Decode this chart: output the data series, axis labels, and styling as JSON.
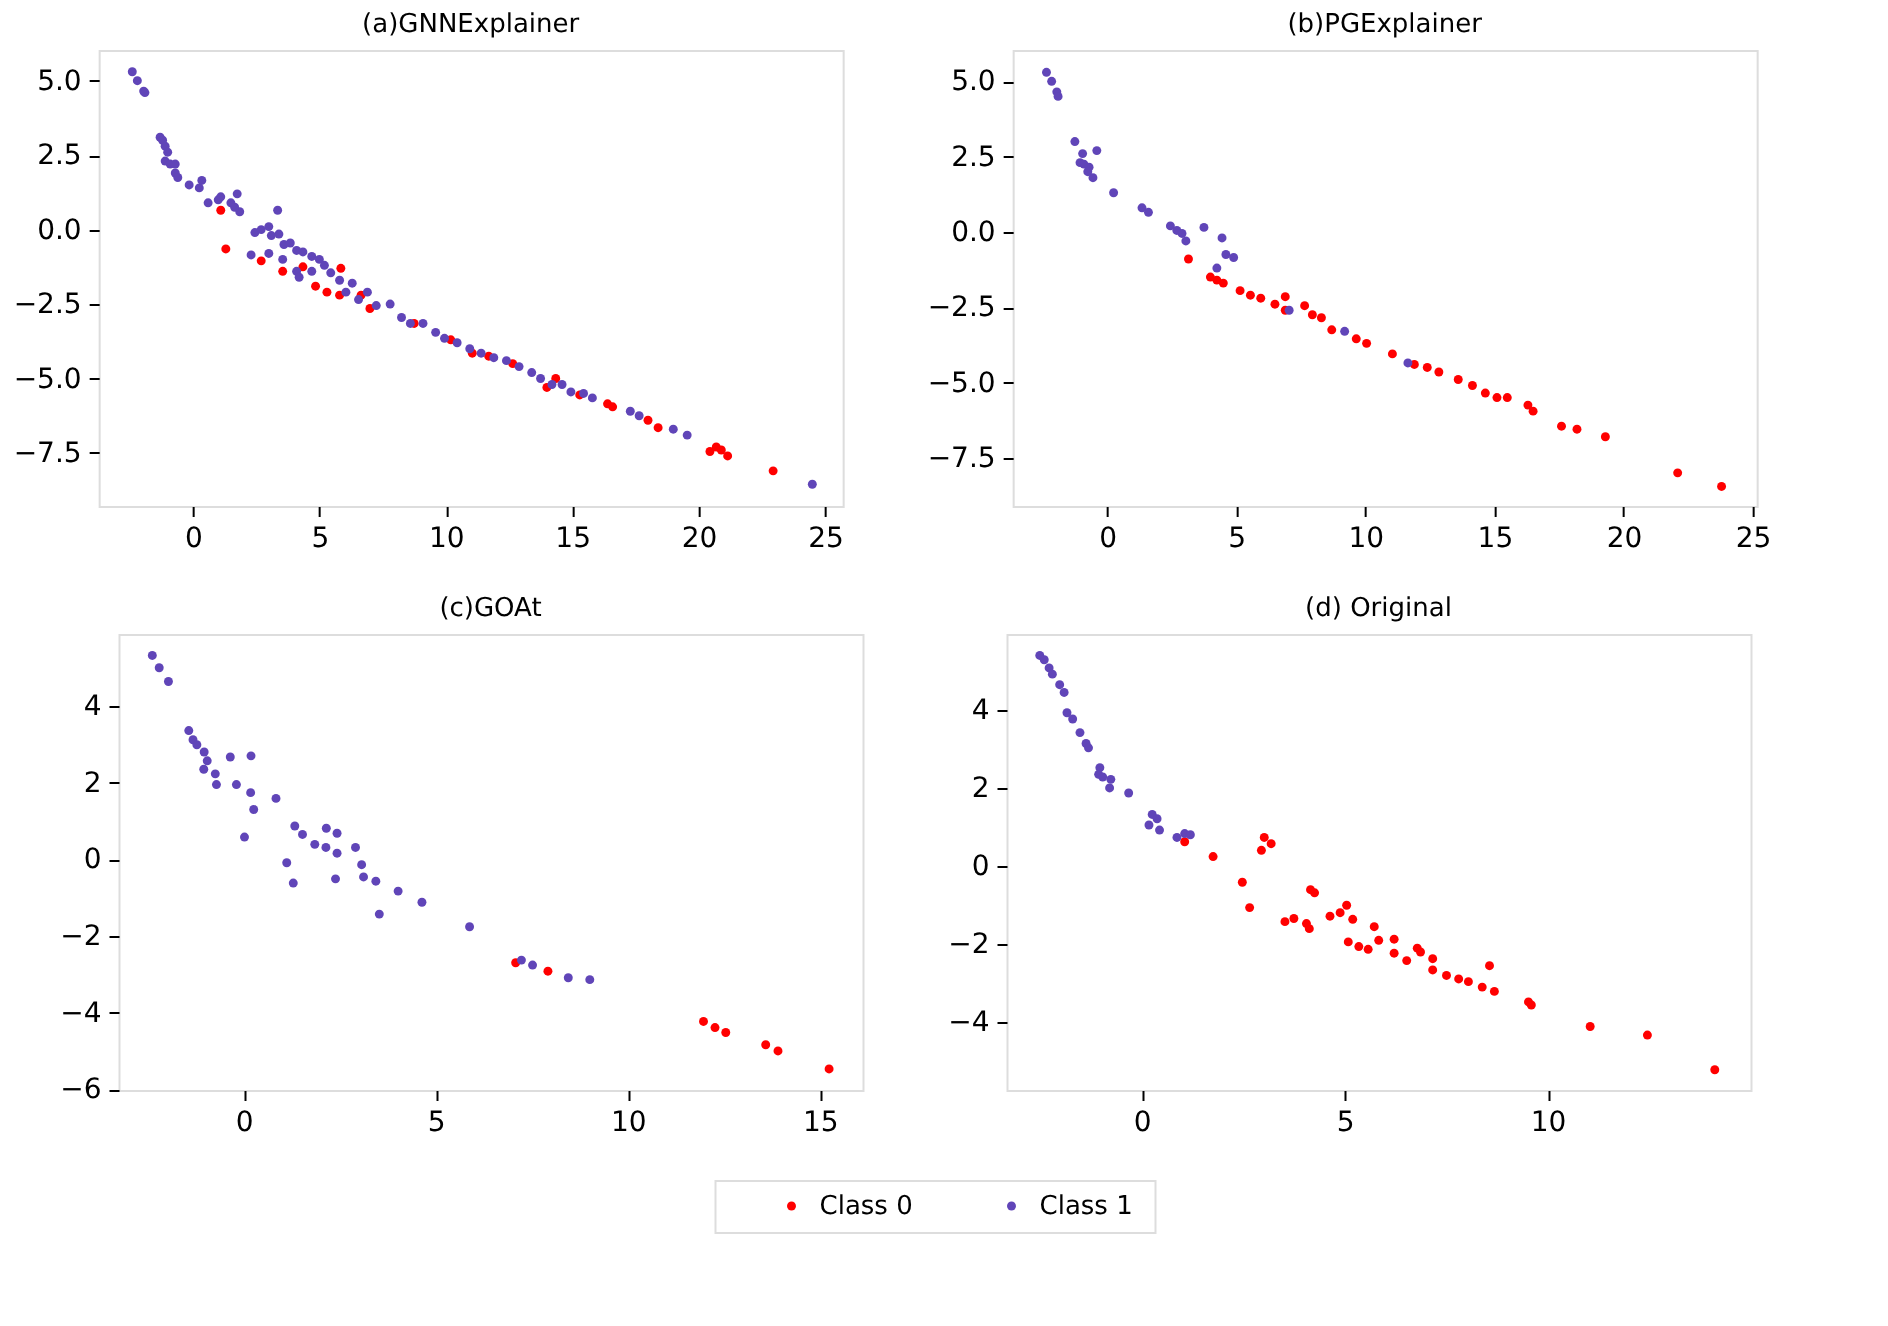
{
  "chart_data": [
    {
      "type": "scatter",
      "title": "(a)GNNExplainer",
      "xlim": [
        -3.73,
        25.7
      ],
      "ylim": [
        -9.28,
        6.03
      ],
      "xticks": [
        0,
        5,
        10,
        15,
        20,
        25
      ],
      "yticks": [
        {
          "value": -7.5,
          "label": "−7.5"
        },
        {
          "value": -5,
          "label": "−5.0"
        },
        {
          "value": -2.5,
          "label": "−2.5"
        },
        {
          "value": 0,
          "label": "0.0"
        },
        {
          "value": 2.5,
          "label": "2.5"
        },
        {
          "value": 5,
          "label": "5.0"
        }
      ],
      "grid": false,
      "marker": "circle",
      "legend": "bottom",
      "series": [
        {
          "name": "Class 0",
          "color": "#ff0000",
          "x": [
            1.3,
            1.1,
            2.7,
            3.55,
            4.35,
            5.85,
            4.85,
            5.3,
            5.8,
            6.65,
            7.0,
            8.75,
            10.2,
            11.05,
            11.7,
            12.65,
            14.0,
            14.35,
            15.3,
            16.4,
            16.6,
            18.0,
            18.4,
            20.45,
            20.7,
            20.9,
            21.15,
            22.95
          ],
          "values": [
            -0.65,
            0.65,
            -1.05,
            -1.4,
            -1.25,
            -1.3,
            -1.9,
            -2.1,
            -2.2,
            -2.2,
            -2.65,
            -3.15,
            -3.7,
            -4.15,
            -4.25,
            -4.5,
            -5.3,
            -5.0,
            -5.55,
            -5.85,
            -5.95,
            -6.4,
            -6.65,
            -7.45,
            -7.3,
            -7.4,
            -7.6,
            -8.1
          ]
        },
        {
          "name": "Class 1",
          "color": "#6045b8",
          "x": [
            -2.4,
            -2.2,
            -1.95,
            -1.9,
            -1.3,
            -1.2,
            -1.1,
            -1.0,
            -1.1,
            -0.9,
            -0.7,
            -0.7,
            -0.6,
            -0.15,
            0.25,
            0.35,
            0.6,
            1.0,
            1.1,
            1.5,
            1.75,
            1.85,
            1.65,
            3.35,
            2.45,
            2.7,
            3.0,
            3.1,
            3.4,
            2.3,
            3.0,
            3.6,
            3.85,
            3.55,
            4.1,
            4.35,
            4.7,
            5.0,
            5.2,
            4.1,
            4.2,
            4.7,
            5.45,
            5.8,
            6.3,
            6.05,
            6.55,
            6.9,
            7.25,
            7.8,
            8.25,
            8.6,
            9.1,
            9.6,
            9.95,
            10.45,
            10.95,
            11.4,
            11.9,
            12.4,
            12.9,
            13.4,
            13.75,
            14.2,
            14.6,
            14.95,
            15.45,
            15.8,
            17.3,
            17.65,
            19.0,
            19.55,
            24.5
          ],
          "values": [
            5.3,
            5.0,
            4.65,
            4.6,
            3.1,
            3.0,
            2.8,
            2.6,
            2.3,
            2.2,
            2.2,
            1.9,
            1.75,
            1.5,
            1.4,
            1.65,
            0.9,
            1.0,
            1.1,
            0.9,
            1.2,
            0.6,
            0.75,
            0.65,
            -0.1,
            0.0,
            0.1,
            -0.2,
            -0.15,
            -0.85,
            -0.8,
            -0.5,
            -0.45,
            -1.0,
            -0.7,
            -0.75,
            -0.9,
            -1.0,
            -1.2,
            -1.4,
            -1.6,
            -1.4,
            -1.45,
            -1.7,
            -1.8,
            -2.1,
            -2.35,
            -2.1,
            -2.55,
            -2.5,
            -2.95,
            -3.15,
            -3.15,
            -3.45,
            -3.65,
            -3.8,
            -4.0,
            -4.15,
            -4.3,
            -4.4,
            -4.6,
            -4.8,
            -5.0,
            -5.2,
            -5.2,
            -5.45,
            -5.5,
            -5.65,
            -6.1,
            -6.25,
            -6.7,
            -6.9,
            -8.55
          ]
        }
      ]
    },
    {
      "type": "scatter",
      "title": "(b)PGExplainer",
      "xlim": [
        -3.66,
        25.16
      ],
      "ylim": [
        -9.1,
        6.04
      ],
      "xticks": [
        0,
        5,
        10,
        15,
        20,
        25
      ],
      "yticks": [
        {
          "value": -7.5,
          "label": "−7.5"
        },
        {
          "value": -5,
          "label": "−5.0"
        },
        {
          "value": -2.5,
          "label": "−2.5"
        },
        {
          "value": 0,
          "label": "0.0"
        },
        {
          "value": 2.5,
          "label": "2.5"
        },
        {
          "value": 5,
          "label": "5.0"
        }
      ],
      "grid": false,
      "marker": "circle",
      "legend": "bottom",
      "series": [
        {
          "name": "Class 0",
          "color": "#ff0000",
          "x": [
            3.15,
            4.0,
            4.25,
            4.5,
            5.15,
            5.55,
            5.95,
            6.5,
            6.9,
            6.9,
            7.65,
            7.95,
            8.3,
            8.7,
            9.65,
            10.05,
            11.05,
            11.9,
            12.4,
            12.85,
            13.6,
            14.15,
            14.65,
            15.1,
            15.5,
            16.3,
            16.5,
            17.6,
            18.2,
            19.3,
            22.1,
            23.8
          ],
          "values": [
            -0.9,
            -1.5,
            -1.6,
            -1.7,
            -1.95,
            -2.1,
            -2.2,
            -2.4,
            -2.15,
            -2.6,
            -2.45,
            -2.75,
            -2.85,
            -3.25,
            -3.55,
            -3.7,
            -4.05,
            -4.4,
            -4.5,
            -4.65,
            -4.9,
            -5.1,
            -5.35,
            -5.5,
            -5.5,
            -5.75,
            -5.95,
            -6.45,
            -6.55,
            -6.8,
            -8.0,
            -8.45
          ]
        },
        {
          "name": "Class 1",
          "color": "#6045b8",
          "x": [
            -2.35,
            -2.15,
            -1.95,
            -1.9,
            -1.25,
            -0.95,
            -0.4,
            -1.05,
            -0.9,
            -0.7,
            -0.75,
            -0.55,
            0.25,
            1.35,
            1.6,
            2.45,
            2.7,
            2.9,
            3.05,
            3.75,
            4.45,
            4.6,
            4.9,
            4.25,
            7.05,
            9.2,
            11.65
          ],
          "values": [
            5.3,
            5.0,
            4.65,
            4.5,
            3.0,
            2.6,
            2.7,
            2.3,
            2.25,
            2.15,
            2.0,
            1.8,
            1.3,
            0.8,
            0.65,
            0.2,
            0.05,
            -0.05,
            -0.3,
            0.15,
            -0.2,
            -0.75,
            -0.85,
            -1.2,
            -2.6,
            -3.3,
            -4.35
          ]
        }
      ]
    },
    {
      "type": "scatter",
      "title": "(c)GOAt",
      "xlim": [
        -3.26,
        16.11
      ],
      "ylim": [
        -6.02,
        5.88
      ],
      "xticks": [
        0,
        5,
        10,
        15
      ],
      "yticks": [
        -6,
        -4,
        -2,
        0,
        2,
        4
      ],
      "grid": false,
      "marker": "circle",
      "legend": "bottom",
      "series": [
        {
          "name": "Class 0",
          "color": "#ff0000",
          "x": [
            7.08,
            7.92,
            11.97,
            12.27,
            12.55,
            13.59,
            13.91,
            15.24
          ],
          "values": [
            -2.7,
            -2.92,
            -4.23,
            -4.39,
            -4.52,
            -4.84,
            -5.0,
            -5.47
          ]
        },
        {
          "name": "Class 1",
          "color": "#6045b8",
          "x": [
            -2.38,
            -2.2,
            -1.96,
            -1.43,
            -1.32,
            -1.22,
            -1.03,
            -0.95,
            -1.04,
            -0.74,
            -0.71,
            -0.35,
            0.19,
            -0.19,
            0.18,
            0.26,
            0.02,
            0.84,
            1.33,
            1.53,
            1.12,
            1.29,
            1.85,
            2.15,
            2.43,
            2.14,
            2.43,
            2.39,
            2.91,
            3.07,
            3.12,
            3.44,
            3.53,
            4.02,
            4.64,
            5.88,
            7.23,
            7.52,
            8.45,
            9.01
          ],
          "values": [
            5.32,
            5.0,
            4.64,
            3.36,
            3.12,
            2.99,
            2.8,
            2.57,
            2.35,
            2.23,
            1.95,
            2.67,
            2.7,
            1.95,
            1.74,
            1.3,
            0.58,
            1.59,
            0.87,
            0.65,
            -0.09,
            -0.62,
            0.39,
            0.81,
            0.68,
            0.31,
            0.16,
            -0.51,
            0.31,
            -0.14,
            -0.46,
            -0.57,
            -1.43,
            -0.83,
            -1.12,
            -1.76,
            -2.63,
            -2.76,
            -3.09,
            -3.14
          ]
        }
      ]
    },
    {
      "type": "scatter",
      "title": "(d) Original",
      "xlim": [
        -3.33,
        15.0
      ],
      "ylim": [
        -5.74,
        5.96
      ],
      "xticks": [
        0,
        5,
        10
      ],
      "yticks": [
        -4,
        -2,
        0,
        2,
        4
      ],
      "grid": false,
      "marker": "circle",
      "legend": "bottom",
      "series": [
        {
          "name": "Class 0",
          "color": "#ff0000",
          "x": [
            1.06,
            1.76,
            2.48,
            2.95,
            3.02,
            3.19,
            2.66,
            3.53,
            3.75,
            4.06,
            4.13,
            4.16,
            4.26,
            4.64,
            4.89,
            5.05,
            5.2,
            5.09,
            5.35,
            5.58,
            5.73,
            5.84,
            6.22,
            6.22,
            6.53,
            6.79,
            6.87,
            7.17,
            7.17,
            7.51,
            7.81,
            8.05,
            8.39,
            8.57,
            8.69,
            9.53,
            9.6,
            11.05,
            12.46,
            14.12
          ],
          "values": [
            0.63,
            0.25,
            -0.41,
            0.41,
            0.74,
            0.58,
            -1.06,
            -1.42,
            -1.34,
            -1.47,
            -1.6,
            -0.6,
            -0.68,
            -1.28,
            -1.19,
            -1.0,
            -1.36,
            -1.94,
            -2.06,
            -2.13,
            -1.55,
            -1.9,
            -1.87,
            -2.23,
            -2.42,
            -2.1,
            -2.2,
            -2.37,
            -2.66,
            -2.8,
            -2.89,
            -2.96,
            -3.1,
            -2.55,
            -3.21,
            -3.48,
            -3.56,
            -4.11,
            -4.33,
            -5.22
          ]
        },
        {
          "name": "Class 1",
          "color": "#6045b8",
          "x": [
            -2.51,
            -2.4,
            -2.28,
            -2.2,
            -2.02,
            -1.91,
            -1.84,
            -1.7,
            -1.52,
            -1.37,
            -1.31,
            -1.03,
            -1.06,
            -0.96,
            -0.76,
            -0.79,
            -0.32,
            0.26,
            0.38,
            0.18,
            0.44,
            0.87,
            1.06,
            1.2
          ],
          "values": [
            5.41,
            5.3,
            5.09,
            4.93,
            4.66,
            4.46,
            3.94,
            3.78,
            3.43,
            3.15,
            3.04,
            2.53,
            2.36,
            2.29,
            2.23,
            2.01,
            1.88,
            1.33,
            1.22,
            1.06,
            0.93,
            0.74,
            0.84,
            0.81
          ]
        }
      ]
    }
  ]
}
